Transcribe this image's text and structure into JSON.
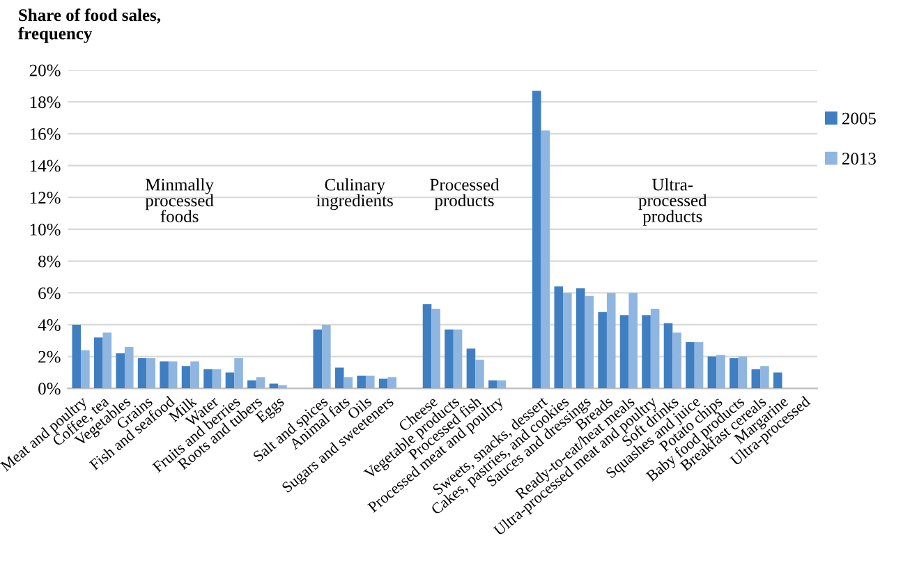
{
  "chart_data": {
    "type": "bar",
    "ylabel": "Share of food sales,\nfrequency",
    "categories": [
      "Meat and poultry",
      "Coffee, tea",
      "Vegetables",
      "Grains",
      "Fish and seafood",
      "Milk",
      "Water",
      "Fruits and berries",
      "Roots and tubers",
      "Eggs",
      null,
      "Salt and spices",
      "Animal fats",
      "Oils",
      "Sugars and sweeteners",
      null,
      "Cheese",
      "Vegetable products",
      "Processed fish",
      "Processed meat and poultry",
      null,
      "Sweets, snacks, dessert",
      "Cakes, pastries, and cookies",
      "Sauces and dressings",
      "Breads",
      "Ready-to-eat/heat meals",
      "Ultra-processed meat and poultry",
      "Soft drinks",
      "Squashes and juice",
      "Potato chips",
      "Baby food products",
      "Breakfast cereals",
      "Margarine",
      "Ultra-processed"
    ],
    "series": [
      {
        "name": "2005",
        "color": "#3f7fc1",
        "values": [
          4.0,
          3.2,
          2.2,
          1.9,
          1.7,
          1.4,
          1.2,
          1.0,
          0.5,
          0.3,
          null,
          3.7,
          1.3,
          0.8,
          0.6,
          null,
          5.3,
          3.7,
          2.5,
          0.5,
          null,
          18.7,
          6.4,
          6.3,
          4.8,
          4.6,
          4.6,
          4.1,
          2.9,
          2.0,
          1.9,
          1.2,
          1.0,
          null
        ]
      },
      {
        "name": "2013",
        "color": "#8fb6e0",
        "values": [
          2.4,
          3.5,
          2.6,
          1.9,
          1.7,
          1.7,
          1.2,
          1.9,
          0.7,
          0.2,
          null,
          4.0,
          0.7,
          0.8,
          0.7,
          null,
          5.0,
          3.7,
          1.8,
          0.5,
          null,
          16.2,
          6.0,
          5.8,
          6.0,
          6.0,
          5.0,
          3.5,
          2.9,
          2.1,
          2.0,
          1.4,
          null,
          null
        ]
      }
    ],
    "annotations": [
      "Minmally\nprocessed\nfoods",
      "Culinary\ningredients",
      "Processed\nproducts",
      "Ultra-\nprocessed\nproducts"
    ],
    "ylim": [
      0,
      20
    ],
    "yticks": [
      {
        "value": 0,
        "label": "0%"
      },
      {
        "value": 2,
        "label": "2%"
      },
      {
        "value": 4,
        "label": "4%"
      },
      {
        "value": 6,
        "label": "6%"
      },
      {
        "value": 8,
        "label": "8%"
      },
      {
        "value": 10,
        "label": "10%"
      },
      {
        "value": 12,
        "label": "12%"
      },
      {
        "value": 14,
        "label": "14%"
      },
      {
        "value": 16,
        "label": "16%"
      },
      {
        "value": 18,
        "label": "18%"
      },
      {
        "value": 20,
        "label": "20%"
      }
    ],
    "grid": "y",
    "legend": "right"
  }
}
